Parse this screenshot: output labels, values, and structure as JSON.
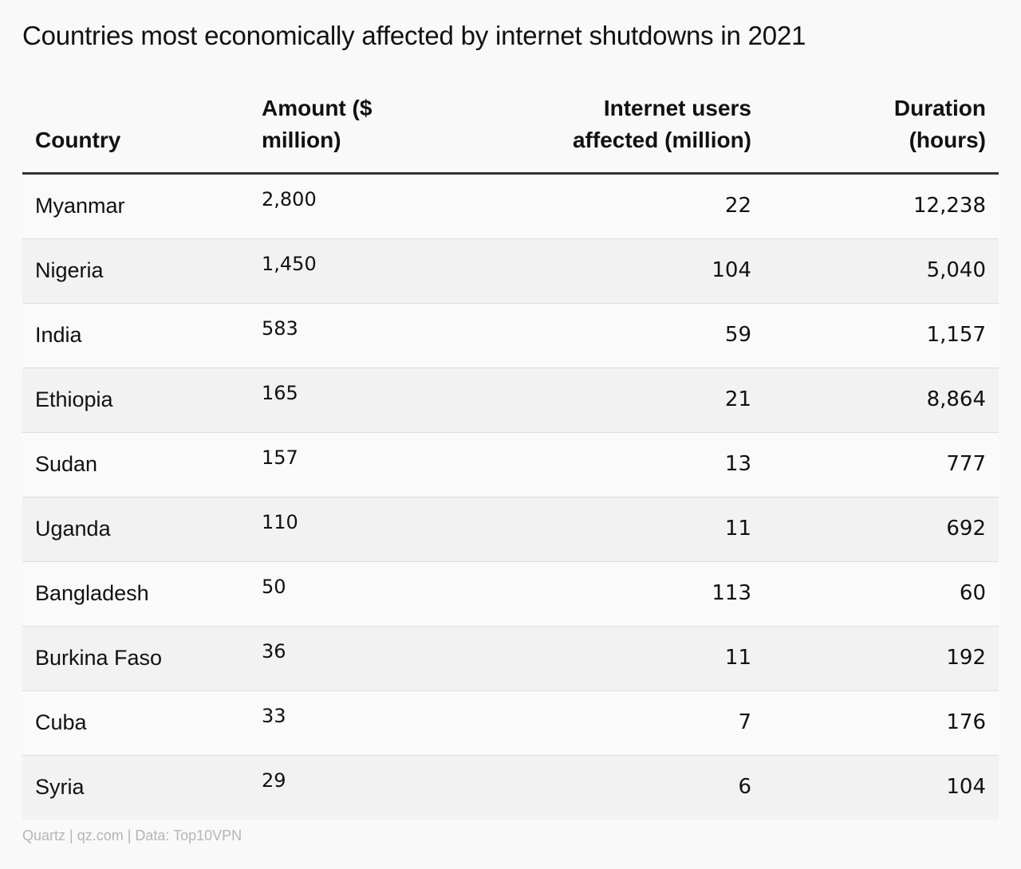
{
  "chart_data": {
    "type": "table",
    "title": "Countries most economically affected by internet shutdowns in 2021",
    "columns": [
      "Country",
      "Amount ($ million)",
      "Internet users affected (million)",
      "Duration (hours)"
    ],
    "header_lines": {
      "country": [
        "Country"
      ],
      "amount": [
        "Amount ($",
        "million)"
      ],
      "users": [
        "Internet users",
        "affected (million)"
      ],
      "duration": [
        "Duration",
        "(hours)"
      ]
    },
    "rows": [
      {
        "country": "Myanmar",
        "amount": "2,800",
        "users": "22",
        "duration": "12,238"
      },
      {
        "country": "Nigeria",
        "amount": "1,450",
        "users": "104",
        "duration": "5,040"
      },
      {
        "country": "India",
        "amount": "583",
        "users": "59",
        "duration": "1,157"
      },
      {
        "country": "Ethiopia",
        "amount": "165",
        "users": "21",
        "duration": "8,864"
      },
      {
        "country": "Sudan",
        "amount": "157",
        "users": "13",
        "duration": "777"
      },
      {
        "country": "Uganda",
        "amount": "110",
        "users": "11",
        "duration": "692"
      },
      {
        "country": "Bangladesh",
        "amount": "50",
        "users": "113",
        "duration": "60"
      },
      {
        "country": "Burkina Faso",
        "amount": "36",
        "users": "11",
        "duration": "192"
      },
      {
        "country": "Cuba",
        "amount": "33",
        "users": "7",
        "duration": "176"
      },
      {
        "country": "Syria",
        "amount": "29",
        "users": "6",
        "duration": "104"
      }
    ],
    "source": "Quartz | qz.com | Data: Top10VPN"
  }
}
